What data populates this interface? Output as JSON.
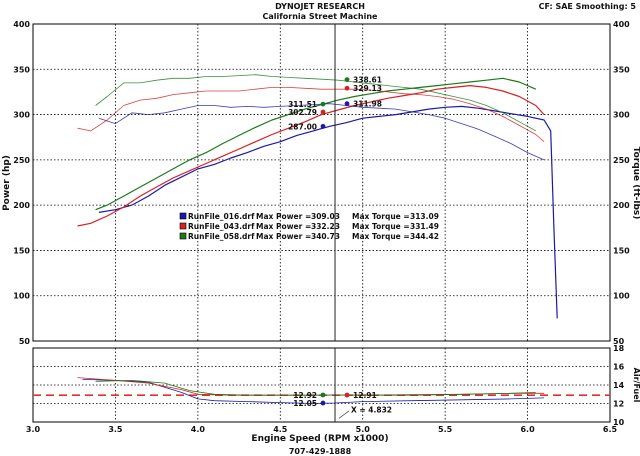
{
  "header": {
    "company": "DYNOJET RESEARCH",
    "subtitle": "California Street Machine",
    "settings": "CF: SAE  Smoothing: 5"
  },
  "footer": {
    "phone": "707-429-1888"
  },
  "chart_data": {
    "type": "line",
    "xlabel": "Engine Speed (RPM x1000)",
    "ylabel_left": "Power (hp)",
    "ylabel_right": "Torque (ft-lbs)",
    "ylabel_afr": "Air/Fuel",
    "xlim": [
      3.0,
      6.5
    ],
    "x_ticks": [
      "3.0",
      "3.5",
      "4.0",
      "4.5",
      "5.0",
      "5.5",
      "6.0",
      "6.5"
    ],
    "main_ylim": [
      50,
      400
    ],
    "main_y_ticks": [
      "50",
      "100",
      "150",
      "200",
      "250",
      "300",
      "350",
      "400"
    ],
    "afr_ylim": [
      10,
      18
    ],
    "afr_y_ticks": [
      "10",
      "12",
      "14",
      "16",
      "18"
    ],
    "cursor_x": 4.832,
    "cursor_label": "X = 4.832",
    "colors": {
      "run016": "#1a1aa8",
      "run043": "#d92020",
      "run058": "#1a7a1a",
      "afr_target": "#e03030"
    },
    "legend": [
      {
        "name": "RunFile_016.drf",
        "max_power_label": "Max Power =",
        "max_power": "309.03",
        "max_torque_label": "Max Torque =",
        "max_torque": "313.09",
        "color": "#1a1aa8"
      },
      {
        "name": "RunFile_043.drf",
        "max_power_label": "Max Power =",
        "max_power": "332.23",
        "max_torque_label": "Max Torque =",
        "max_torque": "331.49",
        "color": "#d92020"
      },
      {
        "name": "RunFile_058.drf",
        "max_power_label": "Max Power =",
        "max_power": "340.73",
        "max_torque_label": "Max Torque =",
        "max_torque": "344.42",
        "color": "#1a7a1a"
      }
    ],
    "cursor_values": [
      {
        "text": "338.61",
        "color": "#1a7a1a",
        "y": 338.6,
        "side": "right"
      },
      {
        "text": "329.13",
        "color": "#d92020",
        "y": 329.1,
        "side": "right"
      },
      {
        "text": "311.51",
        "color": "#1a7a1a",
        "y": 311.5,
        "side": "left"
      },
      {
        "text": "311.98",
        "color": "#1a1aa8",
        "y": 312.0,
        "side": "right"
      },
      {
        "text": "302.79",
        "color": "#d92020",
        "y": 302.8,
        "side": "left"
      },
      {
        "text": "287.00",
        "color": "#1a1aa8",
        "y": 287.0,
        "side": "left"
      }
    ],
    "afr_cursor_values": [
      {
        "text": "12.92",
        "color": "#1a7a1a",
        "y": 12.92,
        "side": "left"
      },
      {
        "text": "12.91",
        "color": "#d92020",
        "y": 12.91,
        "side": "right"
      },
      {
        "text": "12.05",
        "color": "#1a1aa8",
        "y": 12.05,
        "side": "left"
      }
    ],
    "afr_target": 12.9,
    "series": [
      {
        "name": "RunFile_016.drf",
        "kind": "power",
        "color": "#1a1aa8",
        "x": [
          3.4,
          3.5,
          3.6,
          3.7,
          3.8,
          3.9,
          4.0,
          4.1,
          4.2,
          4.3,
          4.4,
          4.5,
          4.6,
          4.7,
          4.8,
          4.9,
          5.0,
          5.1,
          5.2,
          5.3,
          5.4,
          5.5,
          5.6,
          5.7,
          5.8,
          5.9,
          6.0,
          6.1,
          6.14,
          6.16,
          6.18
        ],
        "y": [
          192,
          195,
          200,
          210,
          222,
          231,
          240,
          245,
          252,
          258,
          265,
          270,
          277,
          282,
          287,
          291,
          296,
          298,
          300,
          303,
          306,
          308,
          309,
          307,
          304,
          301,
          298,
          294,
          282,
          175,
          75
        ]
      },
      {
        "name": "RunFile_043.drf",
        "kind": "power",
        "color": "#d92020",
        "x": [
          3.27,
          3.35,
          3.45,
          3.55,
          3.65,
          3.75,
          3.85,
          3.95,
          4.05,
          4.15,
          4.25,
          4.35,
          4.45,
          4.55,
          4.65,
          4.75,
          4.85,
          4.95,
          5.05,
          5.15,
          5.25,
          5.35,
          5.45,
          5.55,
          5.65,
          5.75,
          5.85,
          5.95,
          6.05,
          6.1
        ],
        "y": [
          177,
          180,
          188,
          198,
          210,
          220,
          230,
          238,
          246,
          254,
          262,
          270,
          278,
          285,
          292,
          300,
          305,
          310,
          314,
          318,
          321,
          324,
          328,
          330,
          332,
          330,
          326,
          320,
          310,
          300
        ]
      },
      {
        "name": "RunFile_058.drf",
        "kind": "power",
        "color": "#1a7a1a",
        "x": [
          3.38,
          3.45,
          3.55,
          3.65,
          3.75,
          3.85,
          3.95,
          4.05,
          4.15,
          4.25,
          4.35,
          4.45,
          4.55,
          4.65,
          4.75,
          4.85,
          4.95,
          5.05,
          5.15,
          5.25,
          5.35,
          5.45,
          5.55,
          5.65,
          5.75,
          5.85,
          5.95,
          6.05
        ],
        "y": [
          195,
          200,
          210,
          220,
          230,
          240,
          250,
          258,
          268,
          277,
          286,
          294,
          300,
          306,
          311,
          316,
          320,
          323,
          326,
          328,
          330,
          332,
          334,
          336,
          338,
          340,
          336,
          328
        ]
      },
      {
        "name": "RunFile_016.drf",
        "kind": "torque",
        "color": "#1a1aa8",
        "x": [
          3.4,
          3.5,
          3.6,
          3.7,
          3.8,
          3.9,
          4.0,
          4.1,
          4.2,
          4.3,
          4.4,
          4.5,
          4.6,
          4.7,
          4.8,
          4.9,
          5.0,
          5.1,
          5.2,
          5.3,
          5.4,
          5.5,
          5.6,
          5.7,
          5.8,
          5.9,
          6.0,
          6.1
        ],
        "y": [
          296,
          290,
          302,
          300,
          302,
          306,
          310,
          310,
          308,
          309,
          308,
          309,
          310,
          311,
          312,
          310,
          308,
          307,
          306,
          303,
          300,
          296,
          290,
          284,
          276,
          268,
          258,
          250
        ]
      },
      {
        "name": "RunFile_043.drf",
        "kind": "torque",
        "color": "#d92020",
        "x": [
          3.27,
          3.35,
          3.45,
          3.55,
          3.65,
          3.75,
          3.85,
          3.95,
          4.05,
          4.15,
          4.25,
          4.35,
          4.45,
          4.55,
          4.65,
          4.75,
          4.85,
          4.95,
          5.05,
          5.15,
          5.25,
          5.35,
          5.45,
          5.55,
          5.65,
          5.75,
          5.85,
          5.95,
          6.05,
          6.1
        ],
        "y": [
          285,
          282,
          294,
          310,
          316,
          318,
          322,
          324,
          326,
          326,
          326,
          328,
          330,
          330,
          329,
          328,
          328,
          328,
          327,
          325,
          323,
          322,
          320,
          317,
          312,
          306,
          298,
          288,
          278,
          270
        ]
      },
      {
        "name": "RunFile_058.drf",
        "kind": "torque",
        "color": "#1a7a1a",
        "x": [
          3.38,
          3.45,
          3.55,
          3.65,
          3.75,
          3.85,
          3.95,
          4.05,
          4.15,
          4.25,
          4.35,
          4.45,
          4.55,
          4.65,
          4.75,
          4.85,
          4.95,
          5.05,
          5.15,
          5.25,
          5.35,
          5.45,
          5.55,
          5.65,
          5.75,
          5.85,
          5.95,
          6.05
        ],
        "y": [
          310,
          320,
          335,
          335,
          338,
          340,
          340,
          342,
          342,
          343,
          344,
          342,
          341,
          340,
          339,
          338,
          336,
          334,
          332,
          330,
          328,
          324,
          320,
          316,
          310,
          302,
          292,
          282
        ]
      },
      {
        "name": "RunFile_016.drf",
        "kind": "afr",
        "color": "#1a1aa8",
        "x": [
          3.3,
          3.5,
          3.7,
          3.9,
          4.0,
          4.1,
          4.3,
          4.5,
          4.7,
          4.83,
          5.0,
          5.3,
          5.6,
          5.9,
          6.1
        ],
        "y": [
          14.6,
          14.5,
          14.3,
          13.2,
          12.5,
          12.3,
          12.2,
          12.1,
          12.0,
          12.05,
          12.2,
          12.3,
          12.4,
          12.5,
          12.6
        ]
      },
      {
        "name": "RunFile_043.drf",
        "kind": "afr",
        "color": "#d92020",
        "x": [
          3.27,
          3.5,
          3.7,
          3.9,
          4.0,
          4.2,
          4.4,
          4.6,
          4.83,
          5.0,
          5.3,
          5.6,
          5.9,
          6.1
        ],
        "y": [
          14.8,
          14.5,
          14.2,
          13.5,
          13.0,
          12.9,
          12.9,
          12.9,
          12.91,
          12.9,
          12.95,
          13.0,
          13.1,
          13.1
        ]
      },
      {
        "name": "RunFile_058.drf",
        "kind": "afr",
        "color": "#1a7a1a",
        "x": [
          3.38,
          3.6,
          3.8,
          3.95,
          4.1,
          4.3,
          4.5,
          4.7,
          4.83,
          5.0,
          5.3,
          5.6,
          5.9,
          6.05
        ],
        "y": [
          14.4,
          14.5,
          14.2,
          13.4,
          13.0,
          12.9,
          12.9,
          12.9,
          12.92,
          12.9,
          12.9,
          13.0,
          13.1,
          13.2
        ]
      }
    ]
  }
}
